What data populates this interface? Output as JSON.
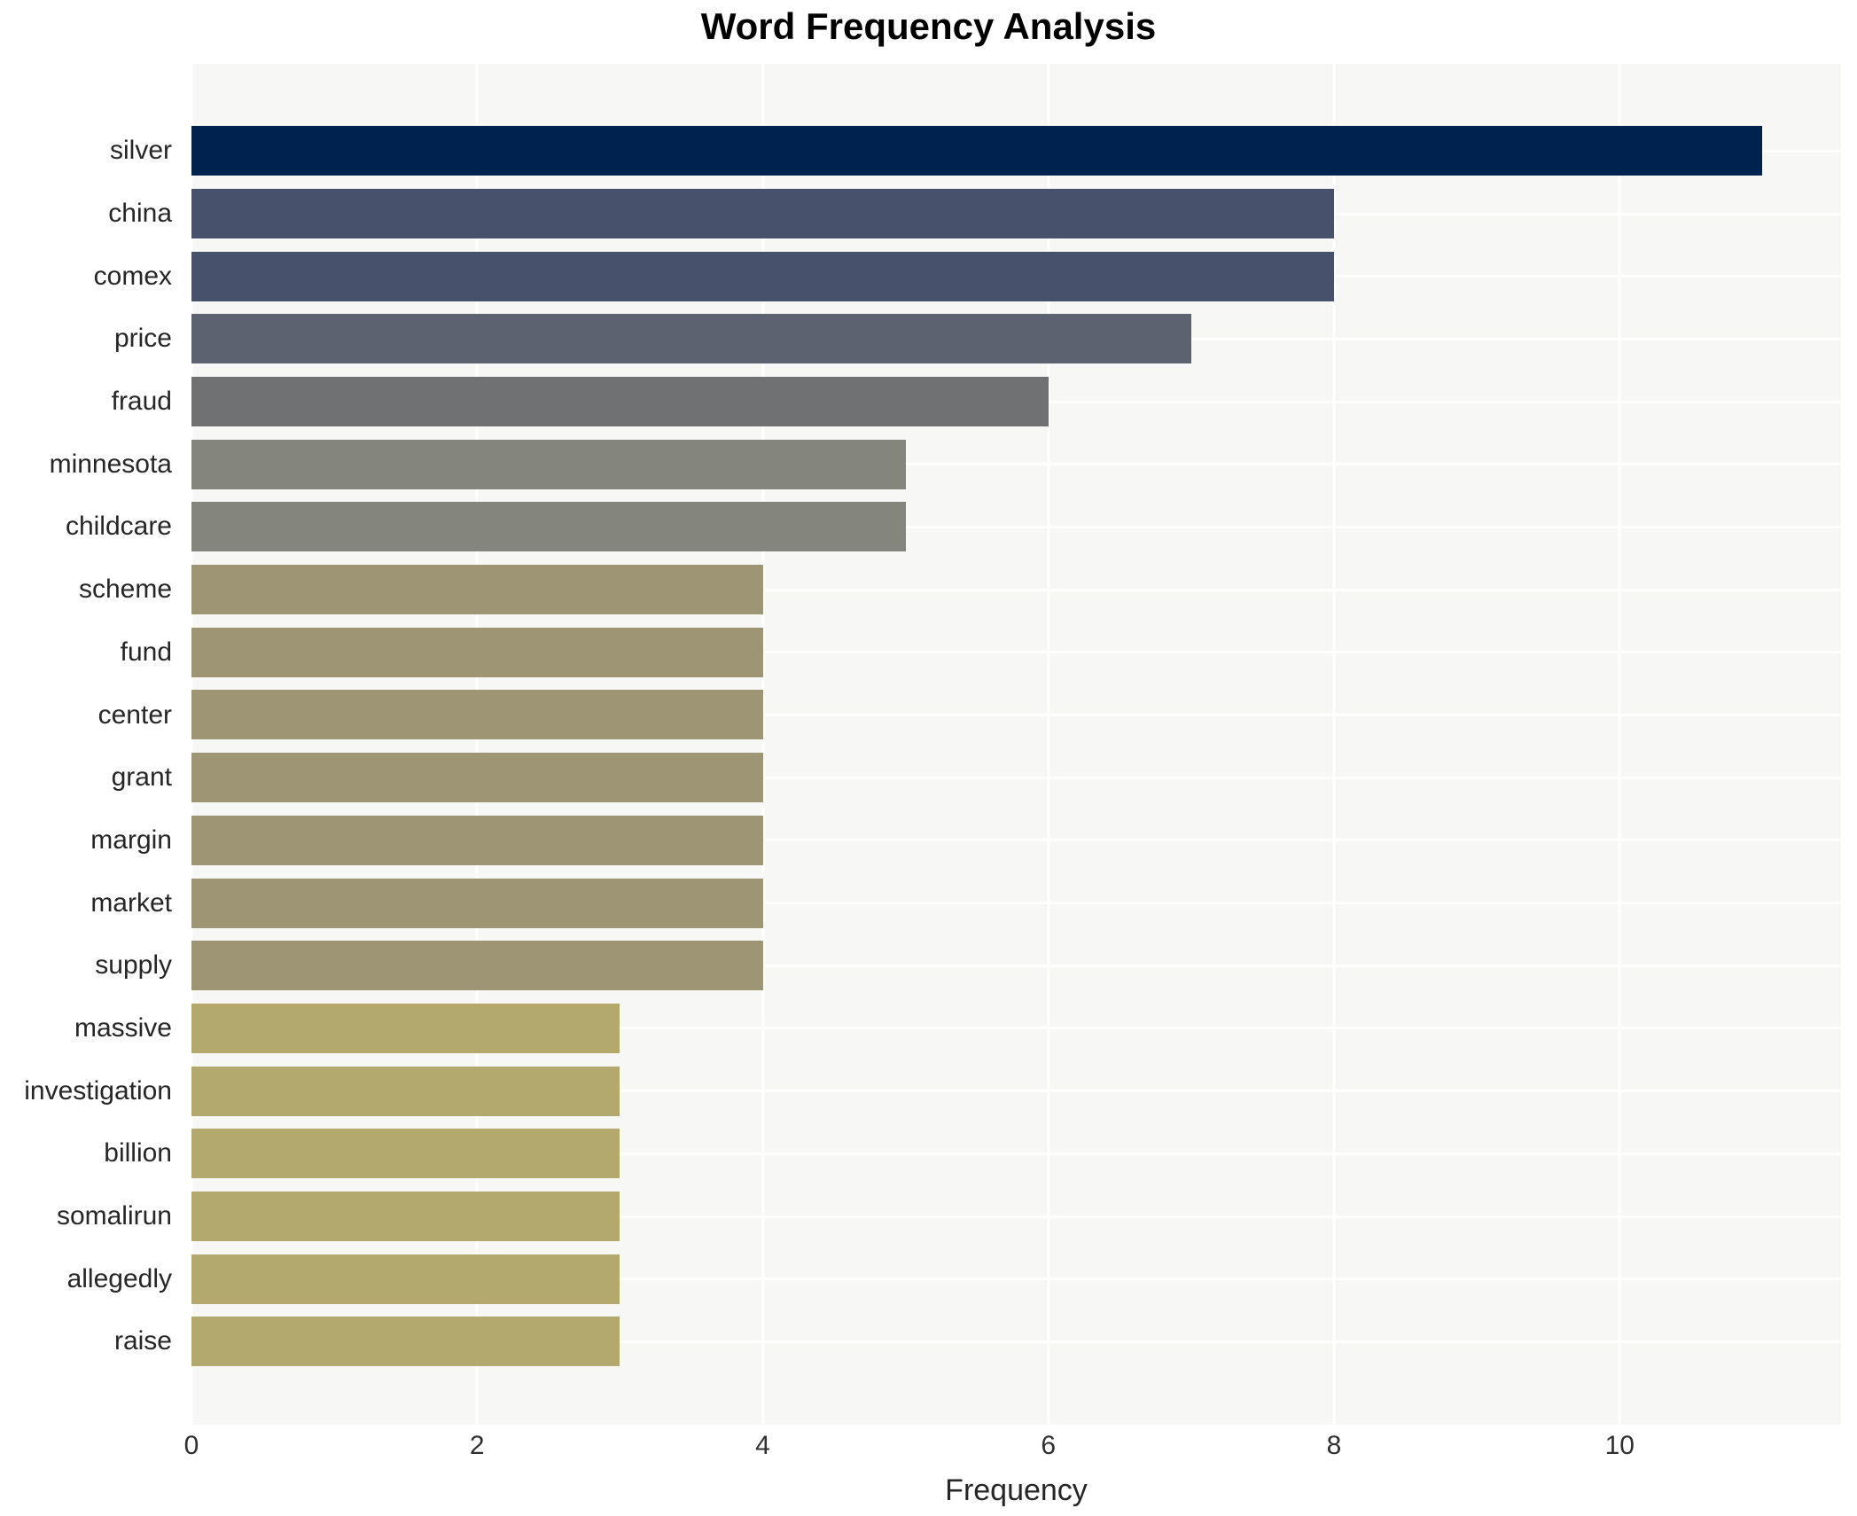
{
  "chart_data": {
    "type": "bar",
    "orientation": "horizontal",
    "title": "Word Frequency Analysis",
    "xlabel": "Frequency",
    "ylabel": "",
    "categories": [
      "silver",
      "china",
      "comex",
      "price",
      "fraud",
      "minnesota",
      "childcare",
      "scheme",
      "fund",
      "center",
      "grant",
      "margin",
      "market",
      "supply",
      "massive",
      "investigation",
      "billion",
      "somalirun",
      "allegedly",
      "raise"
    ],
    "values": [
      11,
      8,
      8,
      7,
      6,
      5,
      5,
      4,
      4,
      4,
      4,
      4,
      4,
      4,
      3,
      3,
      3,
      3,
      3,
      3
    ],
    "bar_colors": [
      "#00224e",
      "#47516c",
      "#47516c",
      "#5d6271",
      "#6f7173",
      "#84857b",
      "#84857b",
      "#9d9573",
      "#9d9573",
      "#9d9573",
      "#9d9573",
      "#9d9573",
      "#9d9573",
      "#9d9573",
      "#b3a96c",
      "#b3a96c",
      "#b3a96c",
      "#b3a96c",
      "#b3a96c",
      "#b3a96c"
    ],
    "xlim": [
      0,
      11.55
    ],
    "xticks": [
      0,
      2,
      4,
      6,
      8,
      10
    ],
    "grid": true,
    "legend": null,
    "plot_background": "#f7f7f5",
    "grid_color": "#ffffff"
  }
}
